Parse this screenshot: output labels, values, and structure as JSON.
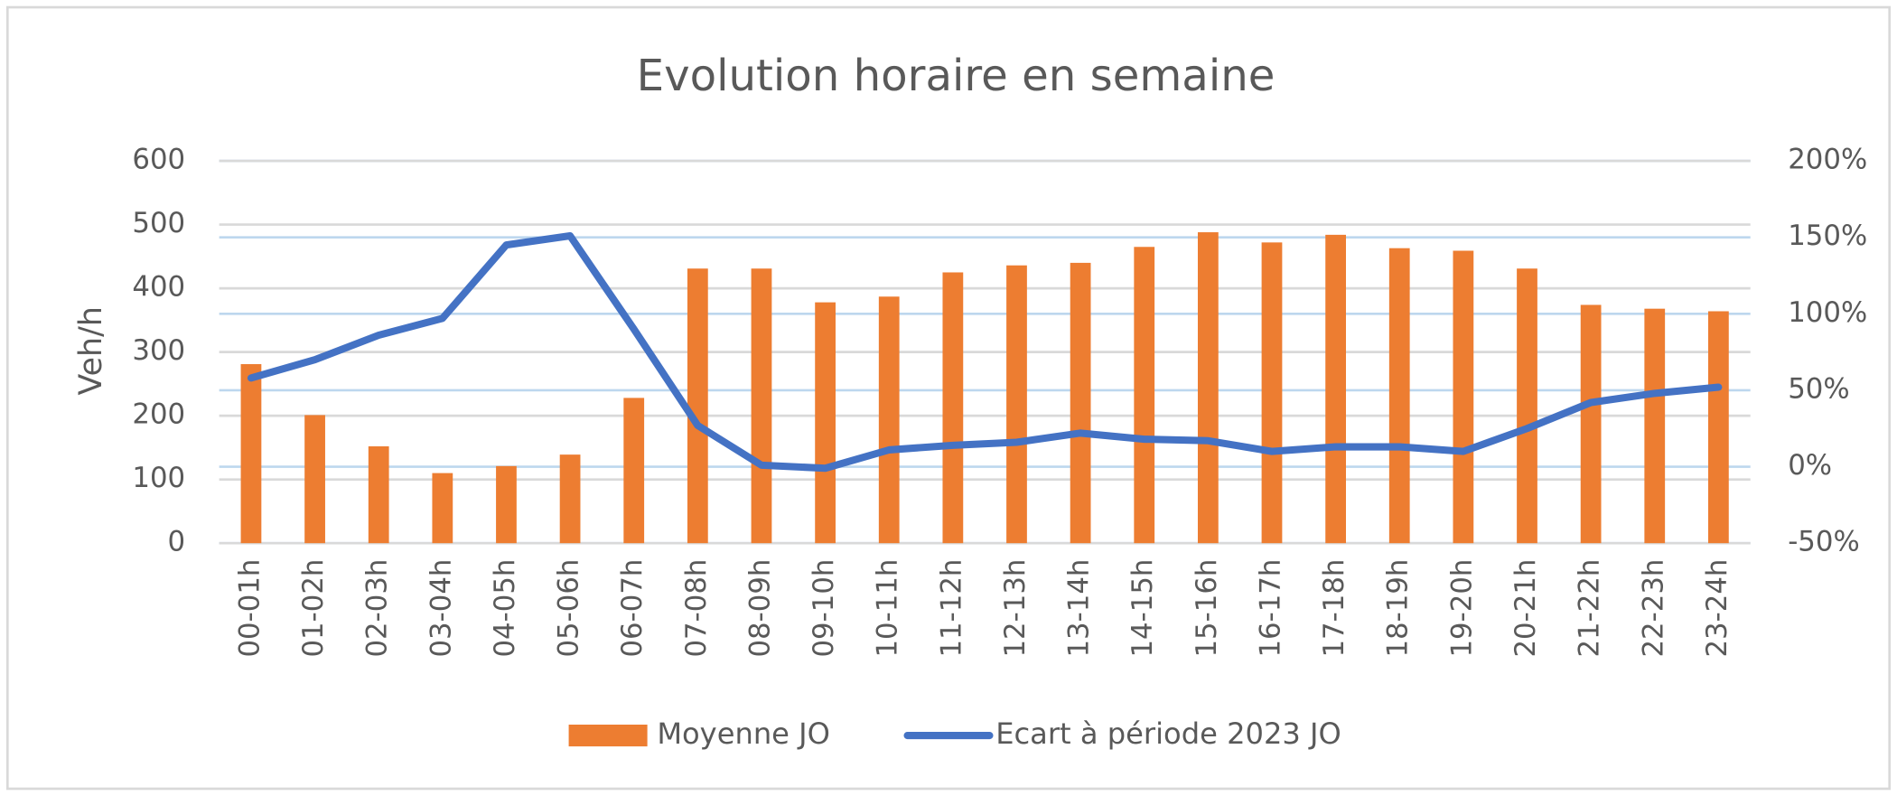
{
  "chart_data": {
    "type": "bar",
    "title": "Evolution horaire en semaine",
    "y_label": "Veh/h",
    "categories": [
      "00-01h",
      "01-02h",
      "02-03h",
      "03-04h",
      "04-05h",
      "05-06h",
      "06-07h",
      "07-08h",
      "08-09h",
      "09-10h",
      "10-11h",
      "11-12h",
      "12-13h",
      "13-14h",
      "14-15h",
      "15-16h",
      "16-17h",
      "17-18h",
      "18-19h",
      "19-20h",
      "20-21h",
      "21-22h",
      "22-23h",
      "23-24h"
    ],
    "series": [
      {
        "name": "Moyenne JO",
        "type": "bar",
        "color": "#ed7d31",
        "values": [
          281,
          201,
          152,
          110,
          121,
          139,
          228,
          431,
          431,
          378,
          387,
          425,
          436,
          440,
          465,
          488,
          472,
          484,
          463,
          459,
          431,
          374,
          368,
          364
        ]
      },
      {
        "name": "Ecart à période 2023 JO",
        "type": "line",
        "axis": "y2",
        "color": "#4472c4",
        "values": [
          58,
          70,
          86,
          97,
          145,
          151,
          90,
          27,
          1,
          -1,
          11,
          14,
          16,
          22,
          18,
          17,
          10,
          13,
          13,
          10,
          25,
          42,
          48,
          52
        ]
      }
    ],
    "ylim": [
      0,
      600
    ],
    "yticks": [
      0,
      100,
      200,
      300,
      400,
      500,
      600
    ],
    "y2lim": [
      -50,
      200
    ],
    "y2ticks": [
      {
        "value": -50,
        "label": "-50%"
      },
      {
        "value": 0,
        "label": "0%"
      },
      {
        "value": 50,
        "label": "50%"
      },
      {
        "value": 100,
        "label": "100%"
      },
      {
        "value": 150,
        "label": "150%"
      },
      {
        "value": 200,
        "label": "200%"
      }
    ],
    "grid": true,
    "legend": "bottom"
  }
}
